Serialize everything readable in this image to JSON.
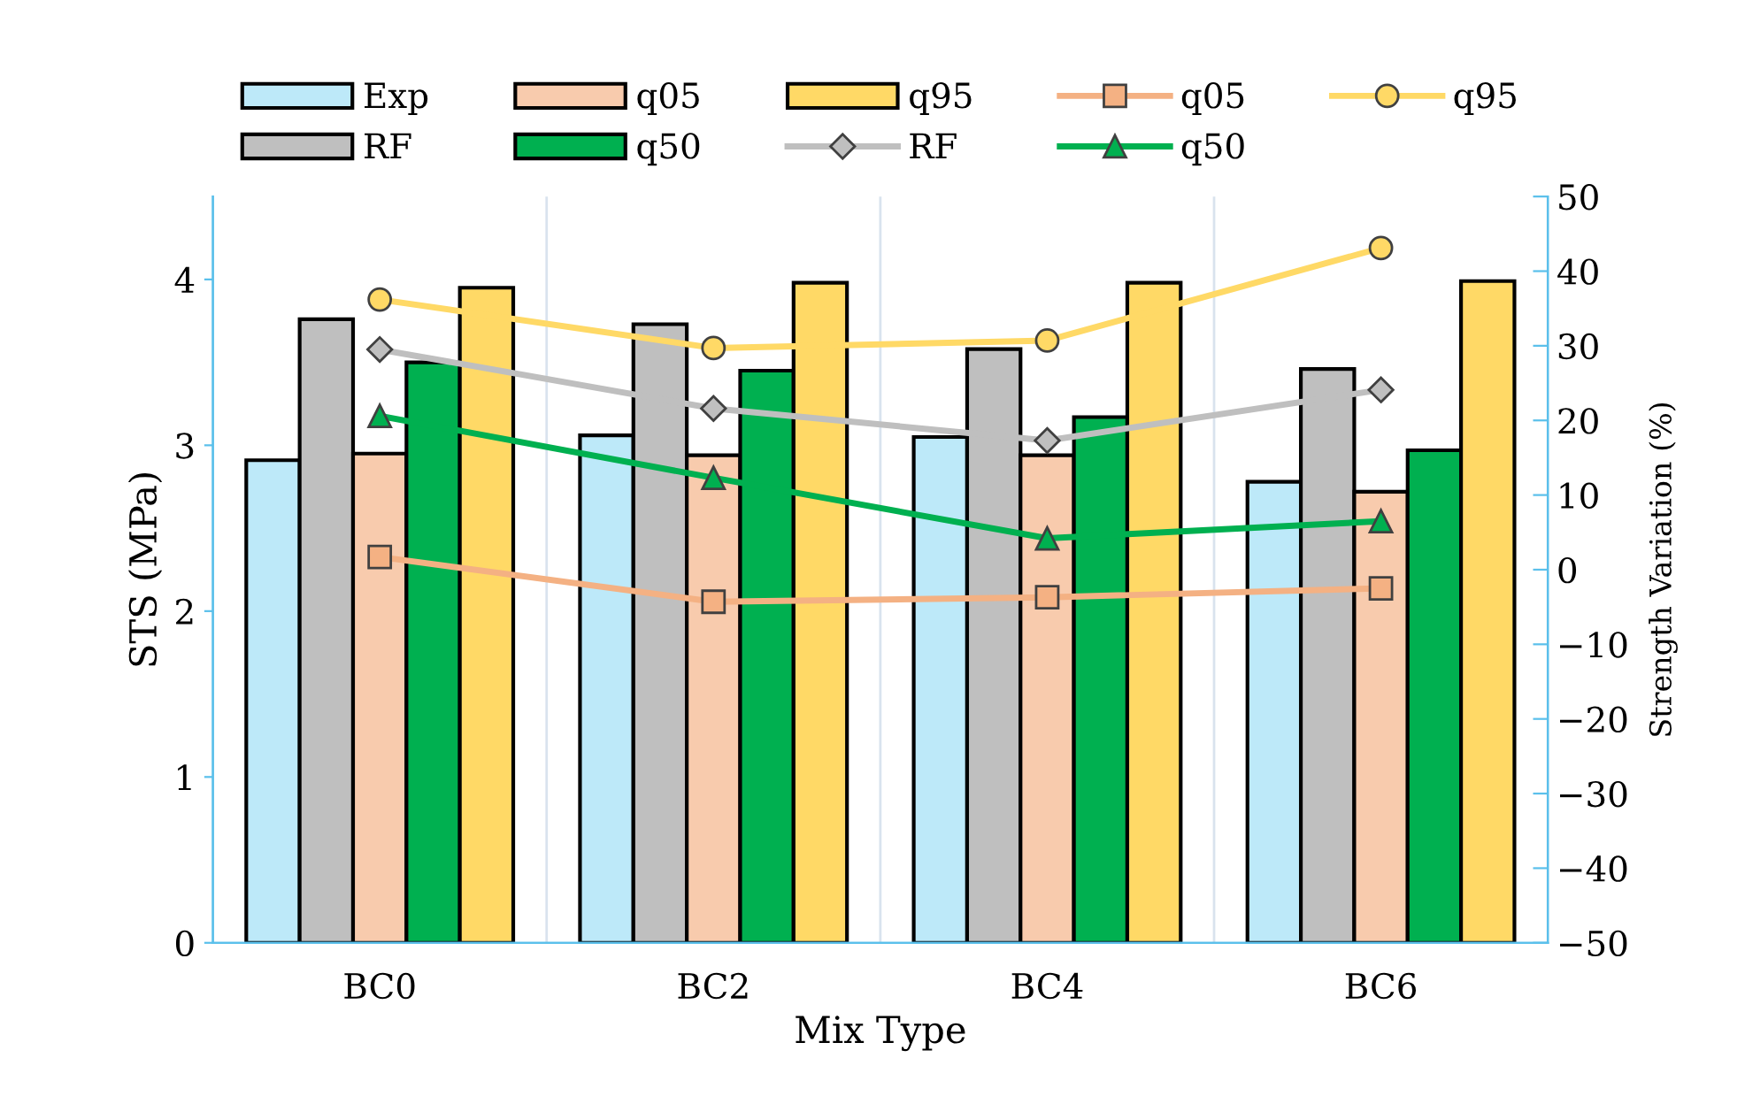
{
  "chart_data": {
    "type": "bar",
    "xlabel": "Mix Type",
    "ylabel": "STS (MPa)",
    "y2label": "Strength Variation (%)",
    "categories": [
      "BC0",
      "BC2",
      "BC4",
      "BC6"
    ],
    "series": [
      {
        "name": "Exp",
        "color": "#bde9f9",
        "values": [
          2.91,
          3.06,
          3.05,
          2.78
        ]
      },
      {
        "name": "RF",
        "color": "#bfbfbf",
        "values": [
          3.76,
          3.73,
          3.58,
          3.46
        ]
      },
      {
        "name": "q05",
        "color": "#f8cbad",
        "values": [
          2.95,
          2.94,
          2.94,
          2.72
        ]
      },
      {
        "name": "q50",
        "color": "#00b050",
        "values": [
          3.5,
          3.45,
          3.17,
          2.97
        ]
      },
      {
        "name": "q95",
        "color": "#ffd966",
        "values": [
          3.95,
          3.98,
          3.98,
          3.99
        ]
      },
      {
        "name": "RF",
        "type": "line",
        "axis": "y2",
        "marker": "diamond",
        "color": "#bfbfbf",
        "values": [
          29.5,
          21.6,
          17.3,
          24.1
        ]
      },
      {
        "name": "q05",
        "type": "line",
        "axis": "y2",
        "marker": "square",
        "color": "#f4b183",
        "values": [
          1.7,
          -4.3,
          -3.7,
          -2.5
        ]
      },
      {
        "name": "q50",
        "type": "line",
        "axis": "y2",
        "marker": "triangle",
        "color": "#00b050",
        "values": [
          20.6,
          12.3,
          4.2,
          6.5
        ]
      },
      {
        "name": "q95",
        "type": "line",
        "axis": "y2",
        "marker": "circle",
        "color": "#ffd966",
        "values": [
          36.2,
          29.7,
          30.7,
          43.1
        ]
      }
    ],
    "ylim": [
      0,
      4.5
    ],
    "yticks": [
      0,
      1,
      2,
      3,
      4
    ],
    "y2lim": [
      -50,
      50
    ],
    "y2ticks": [
      -50,
      -40,
      -30,
      -20,
      -10,
      0,
      10,
      20,
      30,
      40,
      50
    ],
    "grid": "x",
    "legend": "top"
  }
}
